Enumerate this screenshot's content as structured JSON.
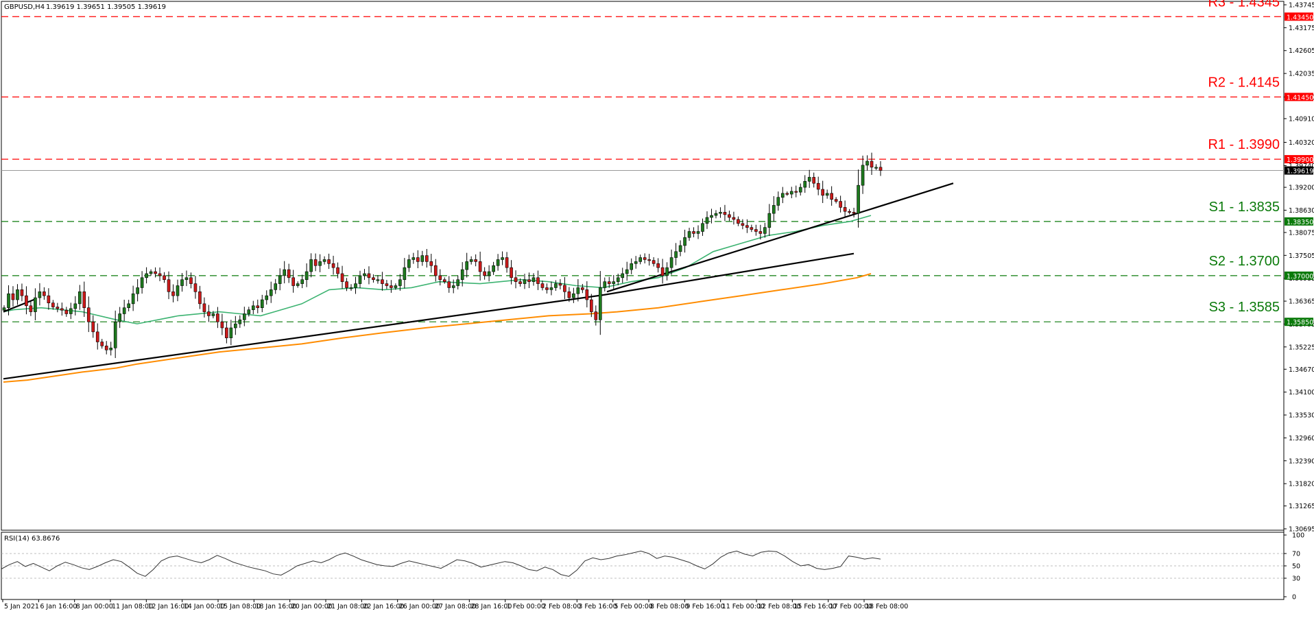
{
  "header": {
    "symbol": "GBPUSD,H4",
    "ohlc": "1.39619 1.39651 1.39505 1.39619"
  },
  "rsi": {
    "label": "RSI(14) 63.8676",
    "ticks": [
      "100",
      "70",
      "50",
      "30",
      "0"
    ]
  },
  "colors": {
    "resistance": "#ff0000",
    "support": "#0a7a0a",
    "bull_candle": "#1e7a1e",
    "bear_candle": "#cc1a1a",
    "ma_fast": "#3cb371",
    "ma_slow": "#ff8c00",
    "trendline": "#000000",
    "rsi_line": "#333333"
  },
  "chart_data": {
    "type": "candlestick",
    "symbol": "GBPUSD",
    "timeframe": "H4",
    "ylim": [
      1.30695,
      1.43745
    ],
    "price_ticks": [
      "1.43745",
      "1.43175",
      "1.42605",
      "1.42035",
      "1.41450",
      "1.40910",
      "1.40320",
      "1.39740",
      "1.39200",
      "1.38630",
      "1.38075",
      "1.37505",
      "1.36935",
      "1.36365",
      "1.35795",
      "1.35225",
      "1.34670",
      "1.34100",
      "1.33530",
      "1.32960",
      "1.32390",
      "1.31820",
      "1.31265",
      "1.30695"
    ],
    "x_labels": [
      "5 Jan 2021",
      "6 Jan 16:00",
      "8 Jan 00:00",
      "11 Jan 08:00",
      "12 Jan 16:00",
      "14 Jan 00:00",
      "15 Jan 08:00",
      "18 Jan 16:00",
      "20 Jan 00:00",
      "21 Jan 08:00",
      "22 Jan 16:00",
      "26 Jan 00:00",
      "27 Jan 08:00",
      "28 Jan 16:00",
      "1 Feb 00:00",
      "2 Feb 08:00",
      "3 Feb 16:00",
      "5 Feb 00:00",
      "8 Feb 08:00",
      "9 Feb 16:00",
      "11 Feb 00:00",
      "12 Feb 08:00",
      "15 Feb 16:00",
      "17 Feb 00:00",
      "18 Feb 08:00"
    ],
    "levels": [
      {
        "label": "R3 - 1.4345",
        "value": 1.4345,
        "tag": "1.43450",
        "kind": "resistance"
      },
      {
        "label": "R2 - 1.4145",
        "value": 1.4145,
        "tag": "1.41450",
        "kind": "resistance"
      },
      {
        "label": "R1 - 1.3990",
        "value": 1.399,
        "tag": "1.39900",
        "kind": "resistance"
      },
      {
        "label": "S1 - 1.3835",
        "value": 1.3835,
        "tag": "1.38350",
        "kind": "support"
      },
      {
        "label": "S2 - 1.3700",
        "value": 1.37,
        "tag": "1.37000",
        "kind": "support"
      },
      {
        "label": "S3 - 1.3585",
        "value": 1.3585,
        "tag": "1.35850",
        "kind": "support"
      }
    ],
    "current_price": {
      "value": 1.39619,
      "tag": "1.39619"
    },
    "candles_close": [
      1.362,
      1.3655,
      1.364,
      1.3665,
      1.365,
      1.3625,
      1.361,
      1.3645,
      1.366,
      1.365,
      1.3632,
      1.3622,
      1.3618,
      1.3614,
      1.3605,
      1.3618,
      1.363,
      1.366,
      1.362,
      1.3585,
      1.356,
      1.3535,
      1.3525,
      1.3515,
      1.352,
      1.3585,
      1.3605,
      1.362,
      1.363,
      1.3655,
      1.367,
      1.3695,
      1.3705,
      1.371,
      1.3705,
      1.37,
      1.369,
      1.366,
      1.365,
      1.3675,
      1.369,
      1.3695,
      1.368,
      1.366,
      1.363,
      1.361,
      1.36,
      1.3605,
      1.3585,
      1.357,
      1.3545,
      1.357,
      1.358,
      1.359,
      1.3605,
      1.3615,
      1.3625,
      1.362,
      1.364,
      1.365,
      1.3665,
      1.368,
      1.37,
      1.3715,
      1.3695,
      1.3675,
      1.368,
      1.369,
      1.371,
      1.374,
      1.3725,
      1.3735,
      1.374,
      1.373,
      1.372,
      1.3705,
      1.3685,
      1.367,
      1.367,
      1.368,
      1.37,
      1.3705,
      1.3695,
      1.369,
      1.369,
      1.368,
      1.3675,
      1.367,
      1.3675,
      1.369,
      1.372,
      1.374,
      1.3745,
      1.3735,
      1.375,
      1.3735,
      1.3725,
      1.37,
      1.369,
      1.3685,
      1.367,
      1.3675,
      1.369,
      1.3715,
      1.3735,
      1.374,
      1.3735,
      1.371,
      1.37,
      1.371,
      1.3725,
      1.374,
      1.3745,
      1.372,
      1.3695,
      1.3685,
      1.368,
      1.369,
      1.3685,
      1.3695,
      1.368,
      1.367,
      1.3665,
      1.367,
      1.368,
      1.3676,
      1.366,
      1.3645,
      1.3655,
      1.367,
      1.3665,
      1.364,
      1.361,
      1.359,
      1.367,
      1.3685,
      1.368,
      1.3685,
      1.3695,
      1.3705,
      1.3715,
      1.373,
      1.3735,
      1.3745,
      1.374,
      1.3738,
      1.373,
      1.372,
      1.37,
      1.372,
      1.3745,
      1.376,
      1.3775,
      1.3795,
      1.381,
      1.3805,
      1.381,
      1.383,
      1.3845,
      1.385,
      1.3855,
      1.3858,
      1.3852,
      1.3845,
      1.384,
      1.383,
      1.3825,
      1.382,
      1.3815,
      1.381,
      1.3805,
      1.382,
      1.3855,
      1.3875,
      1.3895,
      1.3905,
      1.3903,
      1.391,
      1.3908,
      1.392,
      1.3935,
      1.3945,
      1.393,
      1.3915,
      1.39,
      1.3905,
      1.389,
      1.3885,
      1.387,
      1.386,
      1.3858,
      1.3855,
      1.3925,
      1.3975,
      1.3985,
      1.397,
      1.397,
      1.3962
    ],
    "ma_fast": {
      "x": [
        5,
        20,
        60,
        120,
        170,
        200,
        260,
        320,
        350,
        380,
        400,
        440,
        480,
        520,
        560,
        600,
        640,
        700,
        760,
        800,
        840,
        880,
        920,
        960,
        1000,
        1040,
        1080,
        1120,
        1160,
        1200,
        1240,
        1270
      ],
      "y": [
        1.361,
        1.3615,
        1.362,
        1.361,
        1.359,
        1.358,
        1.36,
        1.361,
        1.3605,
        1.36,
        1.361,
        1.363,
        1.3665,
        1.367,
        1.3665,
        1.367,
        1.3685,
        1.368,
        1.369,
        1.3685,
        1.3675,
        1.367,
        1.3685,
        1.3695,
        1.372,
        1.376,
        1.378,
        1.38,
        1.381,
        1.3825,
        1.3835,
        1.385
      ]
    },
    "ma_slow": {
      "x": [
        5,
        40,
        80,
        120,
        170,
        200,
        260,
        320,
        380,
        440,
        500,
        560,
        620,
        680,
        740,
        800,
        860,
        900,
        960,
        1020,
        1080,
        1140,
        1200,
        1250,
        1270
      ],
      "y": [
        1.3435,
        1.344,
        1.345,
        1.346,
        1.347,
        1.348,
        1.3495,
        1.351,
        1.352,
        1.353,
        1.3545,
        1.3558,
        1.357,
        1.358,
        1.359,
        1.36,
        1.3605,
        1.361,
        1.362,
        1.3635,
        1.365,
        1.3665,
        1.368,
        1.3695,
        1.3705
      ]
    },
    "trendlines": [
      {
        "x": [
          5,
          52
        ],
        "y": [
          1.361,
          1.3642
        ]
      },
      {
        "x": [
          5,
          880
        ],
        "y": [
          1.3443,
          1.3652
        ]
      },
      {
        "x": [
          880,
          1245
        ],
        "y": [
          1.3652,
          1.3755
        ]
      },
      {
        "x": [
          885,
          1390
        ],
        "y": [
          1.366,
          1.393
        ]
      }
    ],
    "rsi_series": {
      "ylim": [
        0,
        100
      ],
      "levels": [
        70,
        50,
        30
      ],
      "values": [
        45,
        52,
        57,
        49,
        54,
        48,
        42,
        50,
        56,
        52,
        47,
        44,
        49,
        55,
        60,
        57,
        48,
        38,
        33,
        44,
        58,
        64,
        66,
        62,
        58,
        55,
        60,
        67,
        62,
        56,
        52,
        48,
        45,
        42,
        37,
        35,
        42,
        50,
        54,
        58,
        55,
        60,
        67,
        71,
        66,
        60,
        56,
        52,
        50,
        49,
        54,
        58,
        55,
        52,
        49,
        46,
        53,
        60,
        58,
        54,
        48,
        51,
        54,
        57,
        55,
        50,
        44,
        42,
        48,
        44,
        36,
        33,
        43,
        58,
        63,
        60,
        62,
        66,
        68,
        71,
        74,
        70,
        62,
        66,
        64,
        60,
        56,
        50,
        45,
        53,
        64,
        71,
        74,
        69,
        66,
        72,
        74,
        73,
        66,
        57,
        50,
        52,
        46,
        44,
        46,
        49,
        66,
        64,
        61,
        63,
        61
      ]
    }
  }
}
